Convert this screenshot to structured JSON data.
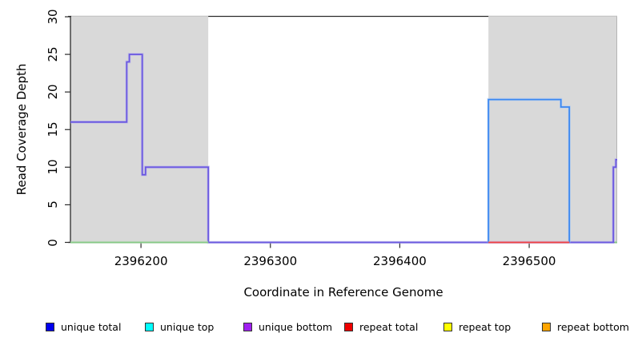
{
  "chart_data": {
    "type": "line",
    "title": "",
    "xlabel": "Coordinate in Reference Genome",
    "ylabel": "Read Coverage Depth",
    "xlim": [
      2396145.5,
      2396568
    ],
    "ylim": [
      0,
      30
    ],
    "xticks": [
      2396200,
      2396300,
      2396400,
      2396500
    ],
    "yticks": [
      0,
      5,
      10,
      15,
      20,
      25,
      30
    ],
    "grid": false,
    "legend_position": "bottom",
    "shaded_regions": [
      {
        "name": "left-gray-region",
        "x0": 2396145.5,
        "x1": 2396252,
        "color": "#d9d9d9"
      },
      {
        "name": "right-gray-region",
        "x0": 2396468.5,
        "x1": 2396568,
        "color": "#d9d9d9"
      }
    ],
    "series": [
      {
        "name": "unique-bottom-coverage",
        "color": "#6a58e0",
        "halo": "#b3abef",
        "width": 1.8,
        "points": [
          [
            2396145.5,
            16
          ],
          [
            2396189,
            16
          ],
          [
            2396189,
            24
          ],
          [
            2396191,
            24
          ],
          [
            2396191,
            25
          ],
          [
            2396201,
            25
          ],
          [
            2396201,
            9
          ],
          [
            2396203.5,
            9
          ],
          [
            2396203.5,
            10
          ],
          [
            2396252,
            10
          ],
          [
            2396252,
            0
          ],
          [
            2396565,
            0
          ],
          [
            2396565,
            10
          ],
          [
            2396567,
            10
          ],
          [
            2396567,
            11
          ],
          [
            2396568,
            11
          ]
        ]
      },
      {
        "name": "unique-top-coverage",
        "color": "#3b87f0",
        "halo": "#a9cbf7",
        "width": 1.8,
        "points": [
          [
            2396468.5,
            0
          ],
          [
            2396468.5,
            19
          ],
          [
            2396524.5,
            19
          ],
          [
            2396524.5,
            18
          ],
          [
            2396531,
            18
          ],
          [
            2396531,
            0
          ]
        ]
      },
      {
        "name": "repeat-total-baseline",
        "color": "#ef4040",
        "halo": "#f7a0a0",
        "width": 1.4,
        "points": [
          [
            2396468.5,
            0
          ],
          [
            2396531,
            0
          ]
        ]
      },
      {
        "name": "green-baseline-left",
        "color": "#84c984",
        "halo": "#c2e4c2",
        "width": 1.6,
        "points": [
          [
            2396145.5,
            0
          ],
          [
            2396252,
            0
          ]
        ]
      },
      {
        "name": "green-baseline-right",
        "color": "#84c984",
        "halo": "#c2e4c2",
        "width": 1.6,
        "points": [
          [
            2396566,
            0
          ],
          [
            2396568,
            0
          ]
        ]
      }
    ]
  },
  "legend": {
    "items": [
      {
        "label": "unique total",
        "color": "#0000ee"
      },
      {
        "label": "unique top",
        "color": "#00ffff"
      },
      {
        "label": "unique bottom",
        "color": "#a020f0"
      },
      {
        "label": "repeat total",
        "color": "#ee0000"
      },
      {
        "label": "repeat top",
        "color": "#ffff00"
      },
      {
        "label": "repeat bottom",
        "color": "#ffa500"
      }
    ]
  }
}
